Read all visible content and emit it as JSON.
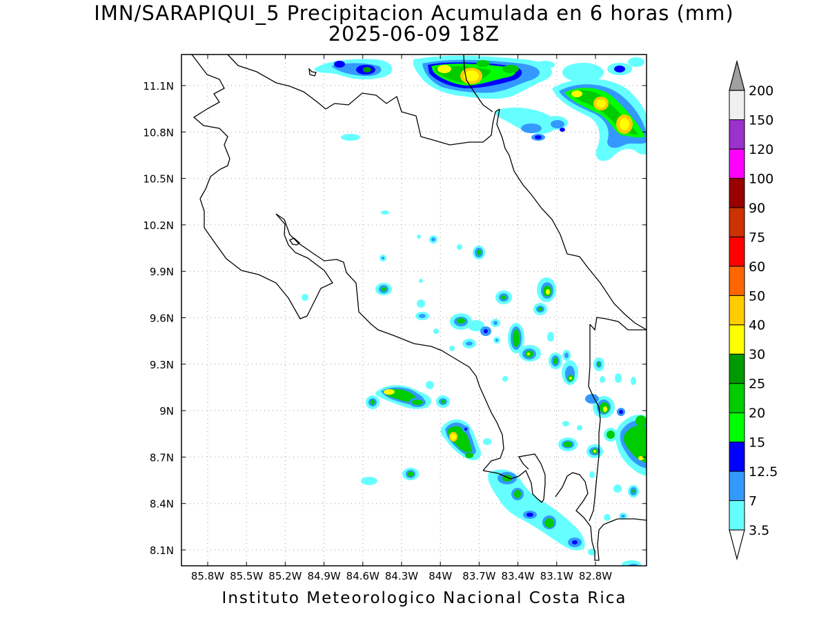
{
  "title_line1": "IMN/SARAPIQUI_5 Precipitacion Acumulada en 6 horas (mm)",
  "title_line2": "2025-06-09 18Z",
  "footer": "Instituto Meteorologico Nacional Costa Rica",
  "axes": {
    "lat_labels": [
      "11.1N",
      "10.8N",
      "10.5N",
      "10.2N",
      "9.9N",
      "9.6N",
      "9.3N",
      "9N",
      "8.7N",
      "8.4N",
      "8.1N"
    ],
    "lon_labels": [
      "85.8W",
      "85.5W",
      "85.2W",
      "84.9W",
      "84.6W",
      "84.3W",
      "84W",
      "83.7W",
      "83.4W",
      "83.1W",
      "82.8W"
    ]
  },
  "colorbar": {
    "levels": [
      "3.5",
      "7",
      "12.5",
      "15",
      "20",
      "25",
      "30",
      "40",
      "50",
      "60",
      "75",
      "90",
      "100",
      "120",
      "150",
      "200"
    ],
    "colors": [
      "#66ffff",
      "#3399ff",
      "#0000ff",
      "#00ff00",
      "#00cc00",
      "#009900",
      "#ffff00",
      "#ffcc00",
      "#ff6600",
      "#ff0000",
      "#cc3300",
      "#990000",
      "#ff00ff",
      "#9933cc",
      "#f0f0f0",
      "#a0a0a0"
    ]
  }
}
